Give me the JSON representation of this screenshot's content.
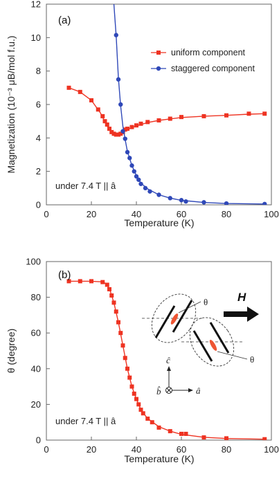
{
  "chart_data": [
    {
      "type": "line",
      "panel_label": "(a)",
      "xlabel": "Temperature (K)",
      "ylabel": "Magnetization (10⁻³ μB/mol f.u.)",
      "xlim": [
        0,
        100
      ],
      "ylim": [
        0,
        12
      ],
      "xticks": [
        0,
        20,
        40,
        60,
        80,
        100
      ],
      "yticks": [
        0,
        2,
        4,
        6,
        8,
        10,
        12
      ],
      "annotation": "under 7.4 T || â",
      "legend_position": "top-right",
      "series": [
        {
          "name": "uniform component",
          "color": "#ee3322",
          "marker": "square",
          "points": [
            [
              10,
              7.0
            ],
            [
              15,
              6.75
            ],
            [
              20,
              6.25
            ],
            [
              23,
              5.7
            ],
            [
              25,
              5.3
            ],
            [
              26,
              5.0
            ],
            [
              27,
              4.8
            ],
            [
              28,
              4.55
            ],
            [
              29,
              4.35
            ],
            [
              30,
              4.25
            ],
            [
              31,
              4.2
            ],
            [
              32,
              4.2
            ],
            [
              33,
              4.25
            ],
            [
              34,
              4.35
            ],
            [
              35,
              4.5
            ],
            [
              36,
              4.55
            ],
            [
              38,
              4.65
            ],
            [
              40,
              4.75
            ],
            [
              42,
              4.85
            ],
            [
              45,
              4.95
            ],
            [
              50,
              5.05
            ],
            [
              55,
              5.15
            ],
            [
              60,
              5.25
            ],
            [
              70,
              5.3
            ],
            [
              80,
              5.35
            ],
            [
              90,
              5.45
            ],
            [
              97,
              5.45
            ]
          ],
          "curve": [
            [
              10,
              7.0
            ],
            [
              15,
              6.75
            ],
            [
              20,
              6.25
            ],
            [
              24,
              5.5
            ],
            [
              27,
              4.7
            ],
            [
              29,
              4.3
            ],
            [
              31,
              4.15
            ],
            [
              33,
              4.2
            ],
            [
              36,
              4.5
            ],
            [
              40,
              4.72
            ],
            [
              45,
              4.92
            ],
            [
              50,
              5.05
            ],
            [
              60,
              5.22
            ],
            [
              70,
              5.3
            ],
            [
              80,
              5.35
            ],
            [
              90,
              5.42
            ],
            [
              97,
              5.45
            ]
          ]
        },
        {
          "name": "staggered component",
          "color": "#2f48b8",
          "marker": "circle",
          "points": [
            [
              31,
              10.15
            ],
            [
              32,
              7.5
            ],
            [
              33,
              6.0
            ],
            [
              34,
              4.4
            ],
            [
              35,
              3.95
            ],
            [
              36,
              3.15
            ],
            [
              37,
              2.8
            ],
            [
              38,
              2.35
            ],
            [
              39,
              2.0
            ],
            [
              40,
              1.7
            ],
            [
              41,
              1.5
            ],
            [
              42,
              1.25
            ],
            [
              44,
              1.0
            ],
            [
              46,
              0.8
            ],
            [
              50,
              0.6
            ],
            [
              55,
              0.4
            ],
            [
              60,
              0.28
            ],
            [
              62,
              0.2
            ],
            [
              70,
              0.15
            ],
            [
              80,
              0.08
            ],
            [
              97,
              0.05
            ]
          ],
          "curve": [
            [
              30,
              12.0
            ],
            [
              31,
              10.1
            ],
            [
              32,
              7.6
            ],
            [
              33,
              5.9
            ],
            [
              34,
              4.7
            ],
            [
              35,
              3.9
            ],
            [
              36,
              3.2
            ],
            [
              38,
              2.35
            ],
            [
              40,
              1.75
            ],
            [
              42,
              1.3
            ],
            [
              45,
              0.95
            ],
            [
              50,
              0.6
            ],
            [
              55,
              0.4
            ],
            [
              60,
              0.27
            ],
            [
              70,
              0.14
            ],
            [
              80,
              0.08
            ],
            [
              97,
              0.05
            ]
          ]
        }
      ]
    },
    {
      "type": "line",
      "panel_label": "(b)",
      "xlabel": "Temperature (K)",
      "ylabel": "θ (degree)",
      "xlim": [
        0,
        100
      ],
      "ylim": [
        0,
        100
      ],
      "xticks": [
        0,
        20,
        40,
        60,
        80,
        100
      ],
      "yticks": [
        0,
        20,
        40,
        60,
        80,
        100
      ],
      "annotation": "under 7.4 T || â",
      "series": [
        {
          "color": "#ee3322",
          "marker": "square",
          "points": [
            [
              10,
              89
            ],
            [
              15,
              89
            ],
            [
              20,
              89
            ],
            [
              25,
              88.5
            ],
            [
              27,
              87
            ],
            [
              28,
              84.5
            ],
            [
              29,
              81
            ],
            [
              30,
              77
            ],
            [
              31,
              72
            ],
            [
              32,
              66
            ],
            [
              33,
              60
            ],
            [
              34,
              53
            ],
            [
              35,
              46
            ],
            [
              36,
              40
            ],
            [
              37,
              35
            ],
            [
              38,
              30
            ],
            [
              39,
              26
            ],
            [
              40,
              23
            ],
            [
              41,
              20
            ],
            [
              42,
              17
            ],
            [
              43,
              15
            ],
            [
              45,
              12
            ],
            [
              47,
              10
            ],
            [
              50,
              7
            ],
            [
              55,
              5
            ],
            [
              60,
              3.5
            ],
            [
              62,
              3.5
            ],
            [
              70,
              1.5
            ],
            [
              80,
              1
            ],
            [
              97,
              0.5
            ]
          ],
          "curve": [
            [
              10,
              89
            ],
            [
              15,
              89
            ],
            [
              20,
              89
            ],
            [
              24,
              88.7
            ],
            [
              26,
              88
            ],
            [
              28,
              85
            ],
            [
              30,
              77
            ],
            [
              32,
              66
            ],
            [
              34,
              53
            ],
            [
              36,
              40
            ],
            [
              38,
              30
            ],
            [
              40,
              23
            ],
            [
              42,
              17
            ],
            [
              45,
              12
            ],
            [
              50,
              7.5
            ],
            [
              55,
              5
            ],
            [
              60,
              3.2
            ],
            [
              70,
              1.6
            ],
            [
              80,
              0.9
            ],
            [
              97,
              0.5
            ]
          ]
        }
      ]
    }
  ],
  "inset": {
    "field_label": "H",
    "angle_labels": [
      "θ",
      "θ"
    ],
    "axis_labels": [
      "ĉ",
      "b̂",
      "â"
    ]
  }
}
